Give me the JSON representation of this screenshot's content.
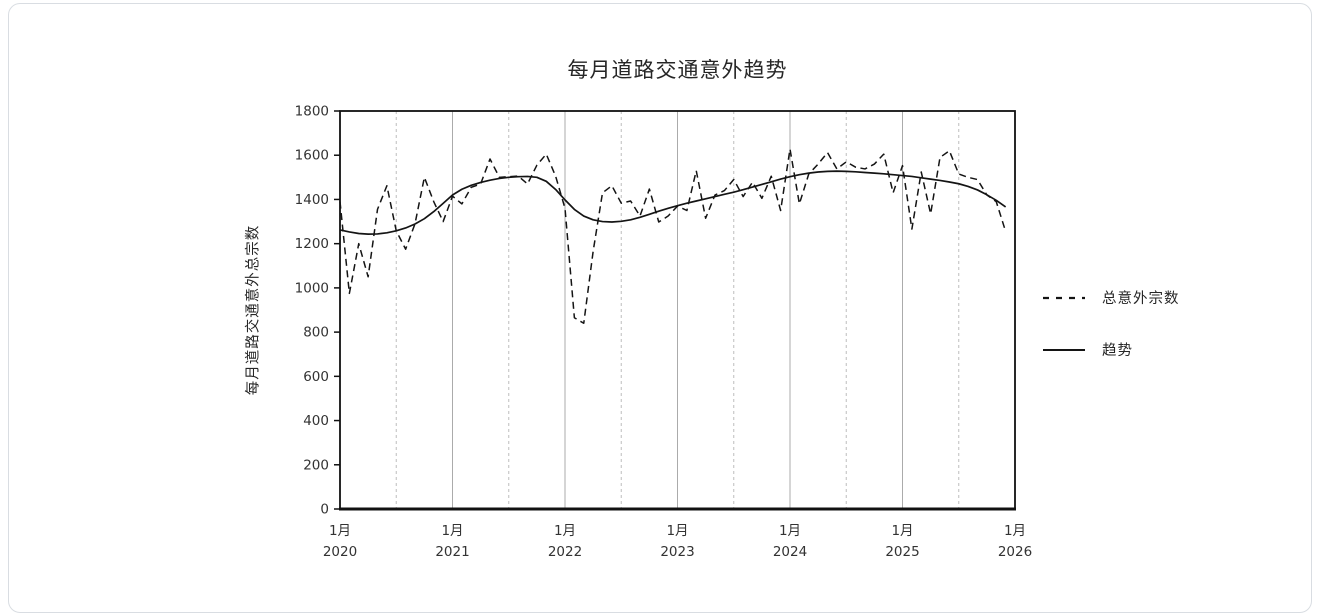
{
  "chart_data": {
    "type": "line",
    "title": "每月道路交通意外趋势",
    "xlabel": "",
    "ylabel": "每月道路交通意外总宗数",
    "ylim": [
      0,
      1800
    ],
    "y_tick_step": 200,
    "y_tick_labels": [
      "0",
      "200",
      "400",
      "600",
      "800",
      "1000",
      "1200",
      "1400",
      "1600",
      "1800"
    ],
    "x_range_months": 72,
    "x_start": "2020-01",
    "x_end": "2025-12",
    "x_tick_labels": [
      {
        "month": "1月",
        "year": "2020"
      },
      {
        "month": "1月",
        "year": "2021"
      },
      {
        "month": "1月",
        "year": "2022"
      },
      {
        "month": "1月",
        "year": "2023"
      },
      {
        "month": "1月",
        "year": "2024"
      },
      {
        "month": "1月",
        "year": "2025"
      },
      {
        "month": "1月",
        "year": "2026"
      }
    ],
    "grid": {
      "vertical_solid_at": "each January",
      "vertical_dashed_at": "each July",
      "horizontal": "none"
    },
    "legend_position": "right",
    "colors": {
      "line": "#141414",
      "grid_solid": "#ababab",
      "grid_dashed": "#bdbdbd",
      "axis": "#111111",
      "text": "#333333"
    },
    "series": [
      {
        "name": "总意外宗数",
        "line_style": "dashed",
        "values": [
          1390,
          975,
          1200,
          1050,
          1355,
          1462,
          1258,
          1175,
          1290,
          1500,
          1390,
          1300,
          1415,
          1380,
          1455,
          1470,
          1583,
          1500,
          1503,
          1506,
          1470,
          1555,
          1605,
          1505,
          1360,
          865,
          840,
          1165,
          1430,
          1462,
          1383,
          1393,
          1325,
          1447,
          1298,
          1325,
          1370,
          1350,
          1530,
          1315,
          1420,
          1440,
          1490,
          1413,
          1478,
          1405,
          1505,
          1350,
          1628,
          1380,
          1515,
          1560,
          1612,
          1538,
          1570,
          1546,
          1538,
          1560,
          1605,
          1430,
          1553,
          1266,
          1524,
          1335,
          1590,
          1620,
          1515,
          1500,
          1490,
          1420,
          1390,
          1255
        ]
      },
      {
        "name": "趋势",
        "line_style": "solid",
        "values": [
          1262,
          1253,
          1246,
          1243,
          1244,
          1249,
          1258,
          1271,
          1289,
          1313,
          1345,
          1382,
          1420,
          1446,
          1464,
          1477,
          1487,
          1495,
          1500,
          1503,
          1504,
          1500,
          1482,
          1445,
          1398,
          1355,
          1325,
          1308,
          1300,
          1298,
          1301,
          1308,
          1319,
          1333,
          1347,
          1360,
          1372,
          1383,
          1393,
          1403,
          1413,
          1423,
          1433,
          1444,
          1456,
          1468,
          1480,
          1492,
          1503,
          1512,
          1519,
          1524,
          1527,
          1528,
          1527,
          1525,
          1522,
          1519,
          1516,
          1512,
          1508,
          1504,
          1498,
          1492,
          1486,
          1479,
          1471,
          1459,
          1443,
          1421,
          1396,
          1366
        ]
      }
    ]
  }
}
